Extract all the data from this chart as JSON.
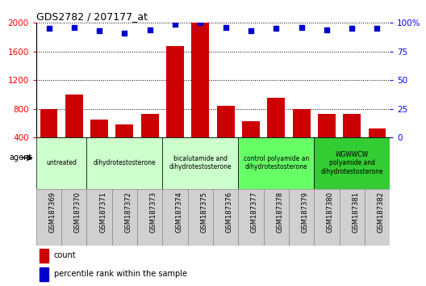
{
  "title": "GDS2782 / 207177_at",
  "samples": [
    "GSM187369",
    "GSM187370",
    "GSM187371",
    "GSM187372",
    "GSM187373",
    "GSM187374",
    "GSM187375",
    "GSM187376",
    "GSM187377",
    "GSM187378",
    "GSM187379",
    "GSM187380",
    "GSM187381",
    "GSM187382"
  ],
  "counts": [
    800,
    1000,
    650,
    580,
    730,
    1680,
    2000,
    840,
    630,
    950,
    800,
    730,
    730,
    520
  ],
  "percentiles": [
    95,
    96,
    93,
    91,
    94,
    99,
    100,
    96,
    93,
    95,
    96,
    94,
    95,
    95
  ],
  "ylim_left": [
    400,
    2000
  ],
  "ylim_right": [
    0,
    100
  ],
  "yticks_left": [
    400,
    800,
    1200,
    1600,
    2000
  ],
  "yticks_right": [
    0,
    25,
    50,
    75,
    100
  ],
  "bar_color": "#cc0000",
  "dot_color": "#0000cc",
  "groups": [
    {
      "label": "untreated",
      "indices": [
        0,
        1
      ],
      "color": "#ccffcc"
    },
    {
      "label": "dihydrotestosterone",
      "indices": [
        2,
        3,
        4
      ],
      "color": "#ccffcc"
    },
    {
      "label": "bicalutamide and\ndihydrotestosterone",
      "indices": [
        5,
        6,
        7
      ],
      "color": "#ccffcc"
    },
    {
      "label": "control polyamide an\ndihydrotestosterone",
      "indices": [
        8,
        9,
        10
      ],
      "color": "#66ff66"
    },
    {
      "label": "WGWWCW\npolyamide and\ndihydrotestosterone",
      "indices": [
        11,
        12,
        13
      ],
      "color": "#33cc33"
    }
  ],
  "legend_count_label": "count",
  "legend_percentile_label": "percentile rank within the sample",
  "agent_label": "agent",
  "xtick_bg_color": "#d0d0d0",
  "plot_bg_color": "#ffffff"
}
